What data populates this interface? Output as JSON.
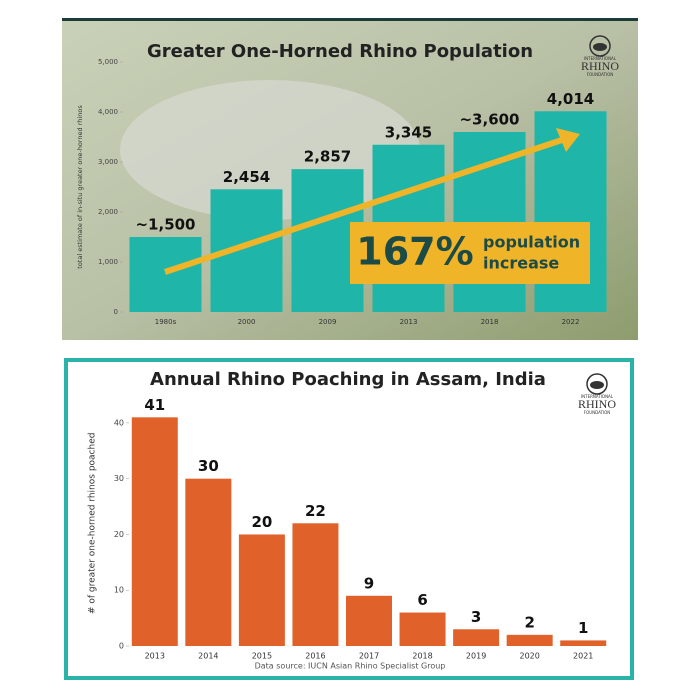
{
  "chart_data": [
    {
      "type": "bar",
      "title": "Greater One-Horned Rhino Population",
      "y_label": "total estimate of in-situ greater one-horned rhinos",
      "categories": [
        "1980s",
        "2000",
        "2009",
        "2013",
        "2018",
        "2022"
      ],
      "values": [
        1500,
        2454,
        2857,
        3345,
        3600,
        4014
      ],
      "value_labels": [
        "~1,500",
        "2,454",
        "2,857",
        "3,345",
        "~3,600",
        "4,014"
      ],
      "color": "#1fb5a8",
      "ylim": [
        0,
        5000
      ],
      "yticks": [
        0,
        {
          "value": 1000,
          "label": "1,000"
        },
        {
          "value": 2000,
          "label": "2,000"
        },
        {
          "value": 3000,
          "label": "3,000"
        },
        {
          "value": 4000,
          "label": "4,000"
        },
        {
          "value": 5000,
          "label": "5,000"
        }
      ],
      "annotations": [
        "167%",
        "population",
        "increase"
      ],
      "logo": [
        "INTERNATIONAL",
        "RHINO",
        "FOUNDATION"
      ]
    },
    {
      "type": "bar",
      "title": "Annual Rhino Poaching in Assam, India",
      "y_label": "# of greater one-horned rhinos poached",
      "categories": [
        "2013",
        "2014",
        "2015",
        "2016",
        "2017",
        "2018",
        "2019",
        "2020",
        "2021"
      ],
      "values": [
        41,
        30,
        20,
        22,
        9,
        6,
        3,
        2,
        1
      ],
      "color": "#e0622a",
      "ylim": [
        0,
        44
      ],
      "yticks": [
        0,
        10,
        20,
        30,
        40
      ],
      "source": "Data source: IUCN Asian Rhino Specialist Group",
      "logo": [
        "INTERNATIONAL",
        "RHINO",
        "FOUNDATION"
      ]
    }
  ]
}
